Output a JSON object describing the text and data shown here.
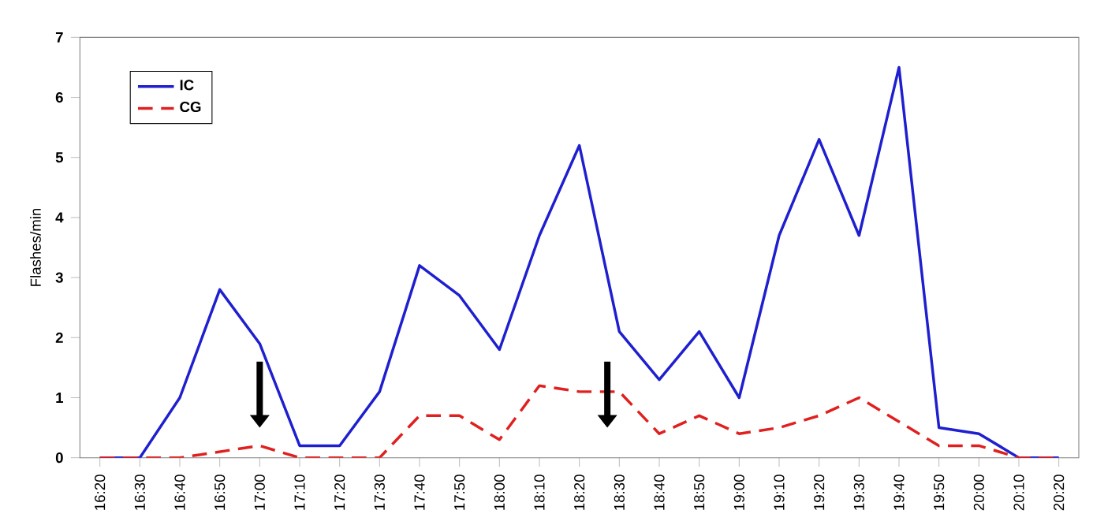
{
  "chart_data": {
    "type": "line",
    "ylabel": "Flashes/min",
    "categories": [
      "16:20",
      "16:30",
      "16:40",
      "16:50",
      "17:00",
      "17:10",
      "17:20",
      "17:30",
      "17:40",
      "17:50",
      "18:00",
      "18:10",
      "18:20",
      "18:30",
      "18:40",
      "18:50",
      "19:00",
      "19:10",
      "19:20",
      "19:30",
      "19:40",
      "19:50",
      "20:00",
      "20:10",
      "20:20"
    ],
    "series": [
      {
        "name": "IC",
        "color": "#1f1fd0",
        "line_style": "solid",
        "values": [
          0,
          0,
          1.0,
          2.8,
          1.9,
          0.2,
          0.2,
          1.1,
          3.2,
          2.7,
          1.8,
          3.7,
          5.2,
          2.1,
          1.3,
          2.1,
          1.0,
          3.7,
          5.3,
          3.7,
          6.5,
          0.5,
          0.4,
          0,
          0
        ]
      },
      {
        "name": "CG",
        "color": "#e02020",
        "line_style": "dashed",
        "values": [
          0,
          0,
          0,
          0.1,
          0.2,
          0,
          0,
          0,
          0.7,
          0.7,
          0.3,
          1.2,
          1.1,
          1.1,
          0.4,
          0.7,
          0.4,
          0.5,
          0.7,
          1.0,
          0.6,
          0.2,
          0.2,
          0,
          0
        ]
      }
    ],
    "ylim": [
      0,
      7
    ],
    "yticks": [
      0,
      1,
      2,
      3,
      4,
      5,
      6,
      7
    ],
    "grid": false,
    "legend": "top left",
    "marker": "none"
  }
}
